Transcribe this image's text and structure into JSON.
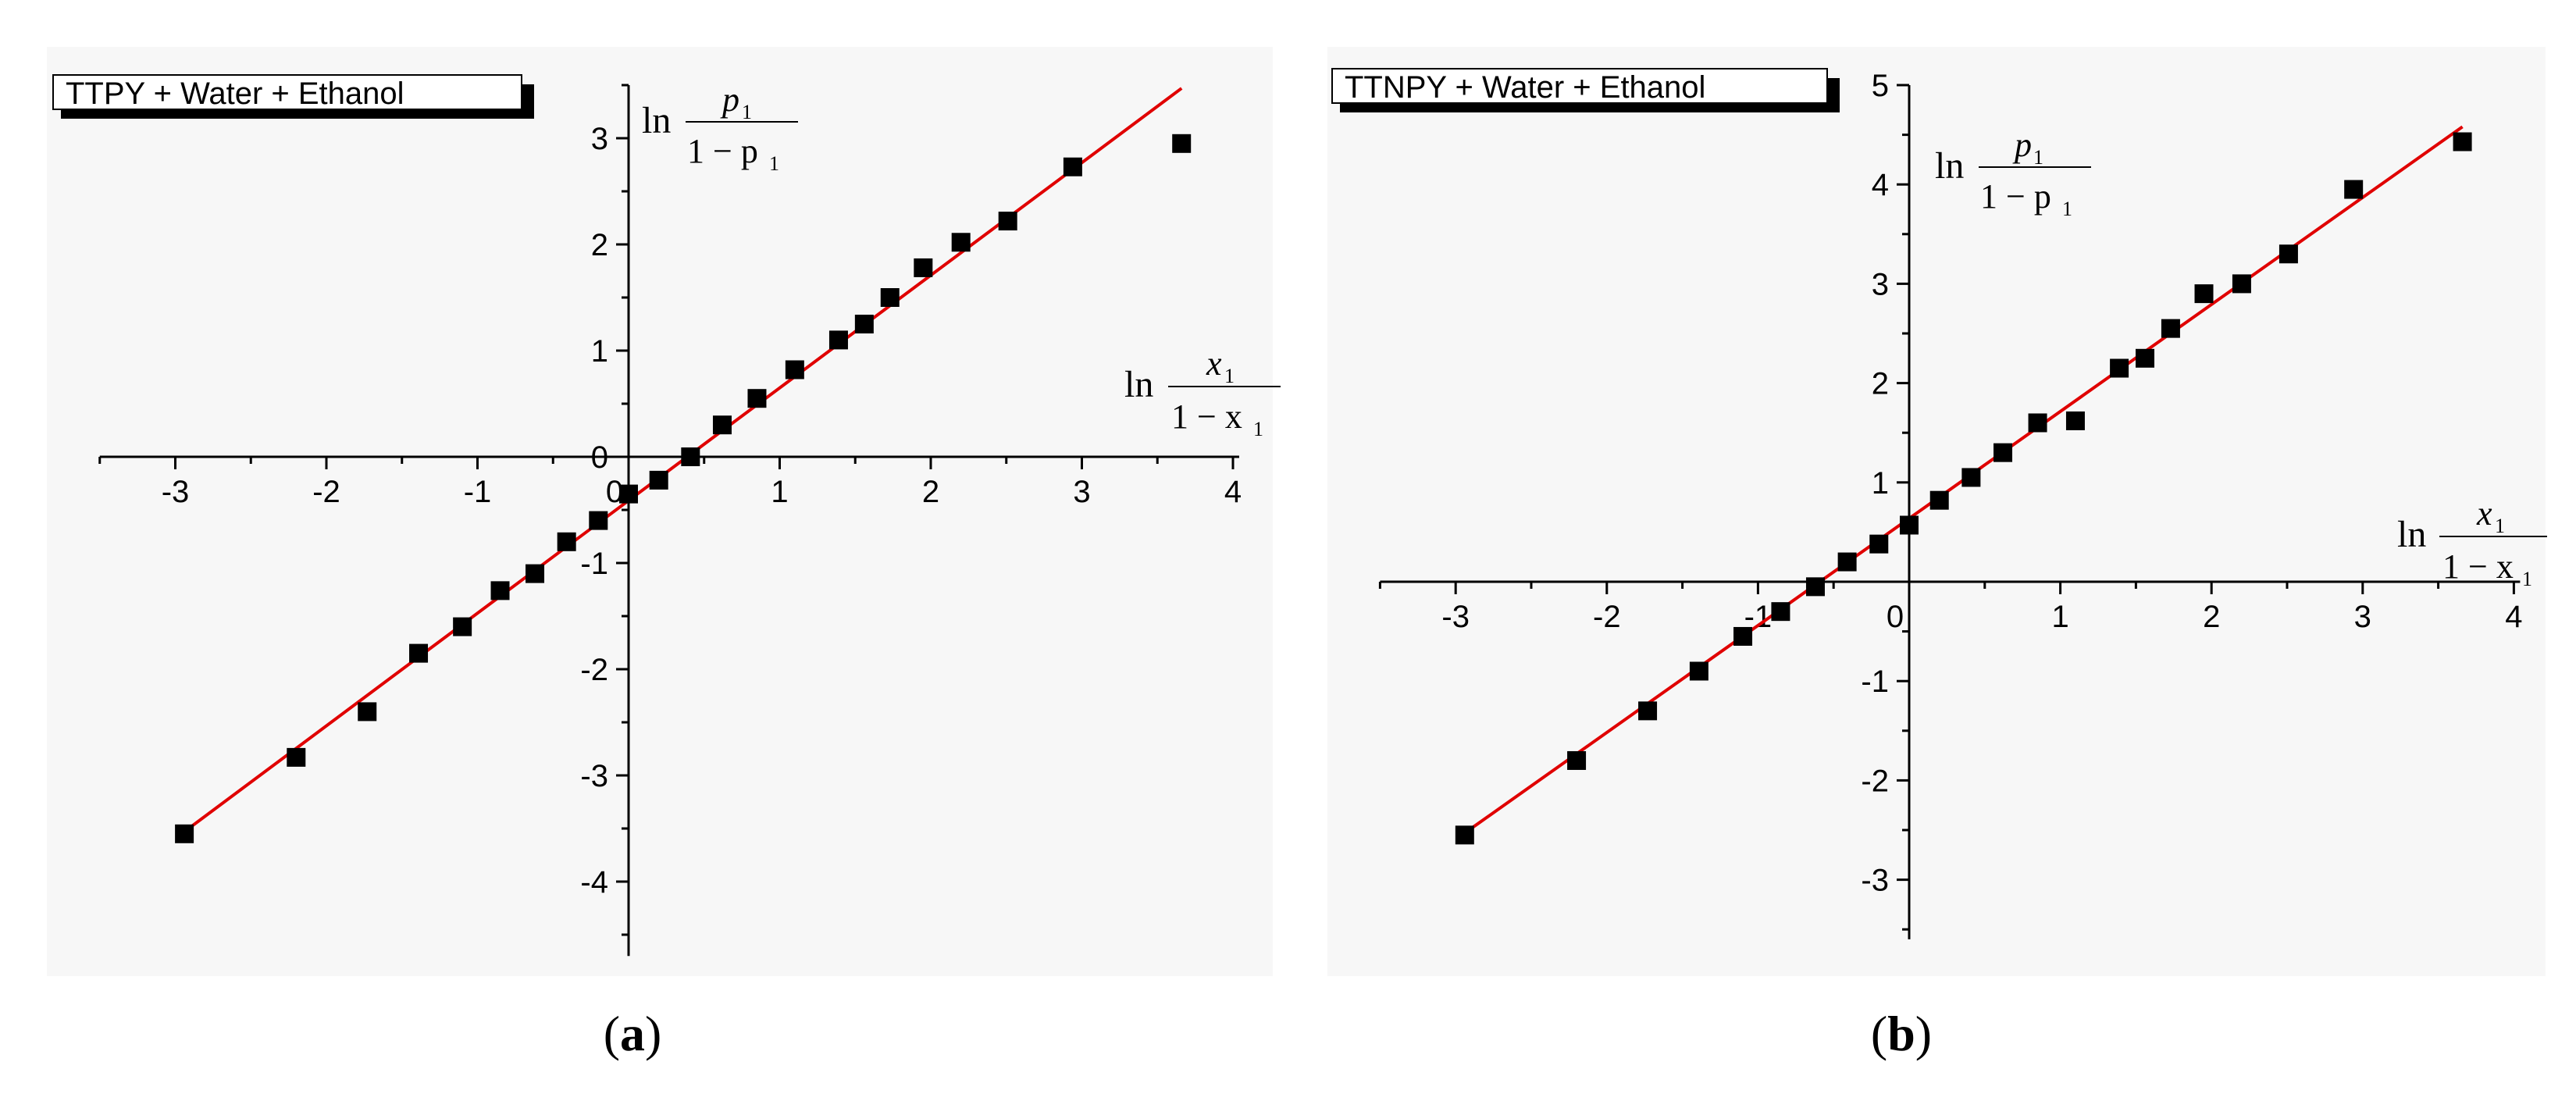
{
  "chart_data": [
    {
      "type": "scatter",
      "panel_label": "a",
      "legend": "TTPY + Water + Ethanol",
      "xlim": [
        -3.5,
        4.0
      ],
      "ylim": [
        -4.7,
        3.5
      ],
      "xticks": [
        -3,
        -2,
        -1,
        0,
        1,
        2,
        3,
        4
      ],
      "yticks": [
        -4,
        -3,
        -2,
        -1,
        0,
        1,
        2,
        3
      ],
      "xlabel": {
        "ln": "ln",
        "num": "x",
        "sub": "1",
        "den": "1 − x"
      },
      "ylabel": {
        "ln": "ln",
        "num": "p",
        "sub": "1",
        "den": "1 − p"
      },
      "series": [
        {
          "x": [
            -2.94,
            -2.2,
            -1.73,
            -1.39,
            -1.1,
            -0.85,
            -0.62,
            -0.41,
            -0.2,
            0.0,
            0.2,
            0.41,
            0.62,
            0.85,
            1.1,
            1.39,
            1.56,
            1.73,
            1.95,
            2.2,
            2.51,
            2.94,
            3.66
          ],
          "y": [
            -3.55,
            -2.83,
            -2.4,
            -1.85,
            -1.6,
            -1.26,
            -1.1,
            -0.8,
            -0.6,
            -0.35,
            -0.22,
            0.0,
            0.3,
            0.55,
            0.82,
            1.1,
            1.25,
            1.5,
            1.78,
            2.02,
            2.22,
            2.73,
            2.95
          ]
        }
      ],
      "fit_line": {
        "x": [
          -2.94,
          3.66
        ],
        "y": [
          -3.53,
          3.47
        ],
        "color": "#e00000"
      }
    },
    {
      "type": "scatter",
      "panel_label": "b",
      "legend": "TTNPY + Water + Ethanol",
      "xlim": [
        -3.5,
        4.0
      ],
      "ylim": [
        -3.6,
        5.0
      ],
      "xticks": [
        -3,
        -2,
        -1,
        0,
        1,
        2,
        3,
        4
      ],
      "yticks": [
        -3,
        -2,
        -1,
        0,
        1,
        2,
        3,
        4,
        5
      ],
      "xlabel": {
        "ln": "ln",
        "num": "x",
        "sub": "1",
        "den": "1 − x"
      },
      "ylabel": {
        "ln": "ln",
        "num": "p",
        "sub": "1",
        "den": "1 − p"
      },
      "series": [
        {
          "x": [
            -2.94,
            -2.2,
            -1.73,
            -1.39,
            -1.1,
            -0.85,
            -0.62,
            -0.41,
            -0.2,
            0.0,
            0.2,
            0.41,
            0.62,
            0.85,
            1.1,
            1.39,
            1.56,
            1.73,
            1.95,
            2.2,
            2.51,
            2.94,
            3.66
          ],
          "y": [
            -2.55,
            -1.8,
            -1.3,
            -0.9,
            -0.55,
            -0.3,
            -0.05,
            0.2,
            0.38,
            0.57,
            0.82,
            1.05,
            1.3,
            1.6,
            1.62,
            2.15,
            2.25,
            2.55,
            2.9,
            3.0,
            3.3,
            3.95,
            4.43
          ]
        }
      ],
      "fit_line": {
        "x": [
          -2.94,
          3.66
        ],
        "y": [
          -2.53,
          4.58
        ],
        "color": "#e00000"
      }
    }
  ]
}
